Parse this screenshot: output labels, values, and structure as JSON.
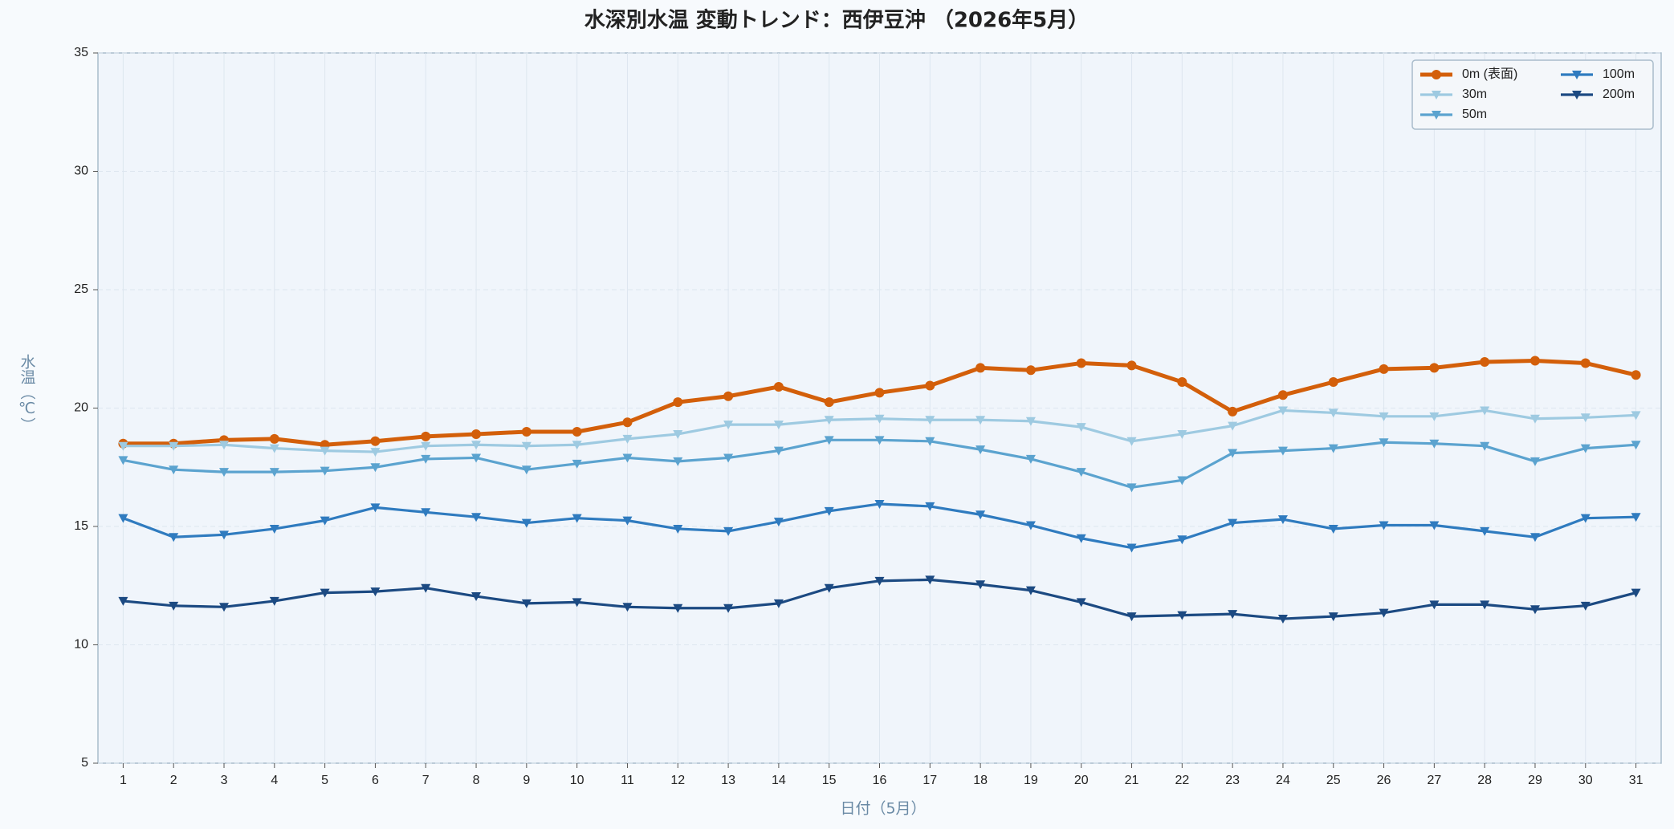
{
  "chart_data": {
    "type": "line",
    "title": "水深別水温 変動トレンド：西伊豆沖 （2026年5月）",
    "xlabel": "日付（5月）",
    "ylabel": "水温（℃）",
    "x": [
      1,
      2,
      3,
      4,
      5,
      6,
      7,
      8,
      9,
      10,
      11,
      12,
      13,
      14,
      15,
      16,
      17,
      18,
      19,
      20,
      21,
      22,
      23,
      24,
      25,
      26,
      27,
      28,
      29,
      30,
      31
    ],
    "xlim": [
      0.5,
      31.5
    ],
    "xticks": [
      1,
      2,
      3,
      4,
      5,
      6,
      7,
      8,
      9,
      10,
      11,
      12,
      13,
      14,
      15,
      16,
      17,
      18,
      19,
      20,
      21,
      22,
      23,
      24,
      25,
      26,
      27,
      28,
      29,
      30,
      31
    ],
    "ylim": [
      5,
      35
    ],
    "yticks": [
      5,
      10,
      15,
      20,
      25,
      30,
      35
    ],
    "grid": true,
    "legend": "upper right",
    "series": [
      {
        "name": "0m (表面)",
        "color": "#d35f0a",
        "marker": "circle",
        "values": [
          18.5,
          18.5,
          18.65,
          18.7,
          18.45,
          18.6,
          18.8,
          18.9,
          19.0,
          19.0,
          19.4,
          20.25,
          20.5,
          20.9,
          20.25,
          20.65,
          20.95,
          21.7,
          21.6,
          21.9,
          21.8,
          21.1,
          19.85,
          20.55,
          21.1,
          21.65,
          21.7,
          21.95,
          22.0,
          21.9,
          21.4
        ]
      },
      {
        "name": "30m",
        "color": "#9ecae1",
        "marker": "triangle",
        "values": [
          18.4,
          18.4,
          18.45,
          18.3,
          18.2,
          18.15,
          18.4,
          18.45,
          18.4,
          18.45,
          18.7,
          18.9,
          19.3,
          19.3,
          19.5,
          19.55,
          19.5,
          19.5,
          19.45,
          19.2,
          18.6,
          18.9,
          19.25,
          19.9,
          19.8,
          19.65,
          19.65,
          19.9,
          19.55,
          19.6,
          19.7
        ]
      },
      {
        "name": "50m",
        "color": "#5ba3cf",
        "marker": "triangle",
        "values": [
          17.8,
          17.4,
          17.3,
          17.3,
          17.35,
          17.5,
          17.85,
          17.9,
          17.4,
          17.65,
          17.9,
          17.75,
          17.9,
          18.2,
          18.65,
          18.65,
          18.6,
          18.25,
          17.85,
          17.3,
          16.65,
          16.95,
          18.1,
          18.2,
          18.3,
          18.55,
          18.5,
          18.4,
          17.75,
          18.3,
          18.45
        ]
      },
      {
        "name": "100m",
        "color": "#2f7bbf",
        "marker": "triangle",
        "values": [
          15.35,
          14.55,
          14.65,
          14.9,
          15.25,
          15.8,
          15.6,
          15.4,
          15.15,
          15.35,
          15.25,
          14.9,
          14.8,
          15.2,
          15.65,
          15.95,
          15.85,
          15.5,
          15.05,
          14.5,
          14.1,
          14.45,
          15.15,
          15.3,
          14.9,
          15.05,
          15.05,
          14.8,
          14.55,
          15.35,
          15.4
        ]
      },
      {
        "name": "200m",
        "color": "#1c4a82",
        "marker": "triangle",
        "values": [
          11.85,
          11.65,
          11.6,
          11.85,
          12.2,
          12.25,
          12.4,
          12.05,
          11.75,
          11.8,
          11.6,
          11.55,
          11.55,
          11.75,
          12.4,
          12.7,
          12.75,
          12.55,
          12.3,
          11.8,
          11.2,
          11.25,
          11.3,
          11.1,
          11.2,
          11.35,
          11.7,
          11.7,
          11.5,
          11.65,
          12.2
        ]
      }
    ]
  }
}
